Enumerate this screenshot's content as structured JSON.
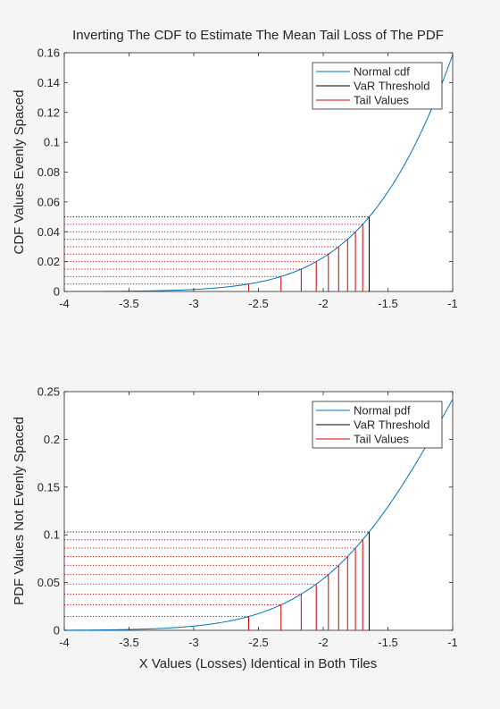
{
  "figure": {
    "title": "Inverting The CDF to Estimate The Mean Tail Loss of The PDF",
    "shared_xlabel": "X Values (Losses) Identical in Both Tiles"
  },
  "chart_data": [
    {
      "type": "line",
      "title": "Inverting The CDF to Estimate The Mean Tail Loss of The PDF",
      "xlabel": "",
      "ylabel": "CDF Values Evenly Spaced",
      "xlim": [
        -4,
        -1
      ],
      "ylim": [
        0,
        0.16
      ],
      "xticks": [
        -4,
        -3.5,
        -3,
        -2.5,
        -2,
        -1.5,
        -1
      ],
      "xtick_labels": [
        "-4",
        "-3.5",
        "-3",
        "-2.5",
        "-2",
        "-1.5",
        "-1"
      ],
      "yticks": [
        0,
        0.02,
        0.04,
        0.06,
        0.08,
        0.1,
        0.12,
        0.14,
        0.16
      ],
      "ytick_labels": [
        "0",
        "0.02",
        "0.04",
        "0.06",
        "0.08",
        "0.1",
        "0.12",
        "0.14",
        "0.16"
      ],
      "grid": false,
      "legend_position": "top-right",
      "legend": [
        "Normal cdf",
        "VaR Threshold",
        "Tail Values"
      ],
      "colors": {
        "curve": "#0072bd",
        "threshold": "#000000",
        "tail": "#d40000"
      },
      "curve": "normal_cdf",
      "var_threshold": {
        "x": -1.645,
        "y": 0.05
      },
      "tail_values": [
        {
          "x": -2.576,
          "y": 0.005
        },
        {
          "x": -2.326,
          "y": 0.01
        },
        {
          "x": -2.17,
          "y": 0.015
        },
        {
          "x": -2.054,
          "y": 0.02
        },
        {
          "x": -1.96,
          "y": 0.025
        },
        {
          "x": -1.881,
          "y": 0.03
        },
        {
          "x": -1.812,
          "y": 0.035
        },
        {
          "x": -1.751,
          "y": 0.04
        },
        {
          "x": -1.695,
          "y": 0.045
        }
      ]
    },
    {
      "type": "line",
      "title": "",
      "xlabel": "X Values (Losses) Identical in Both Tiles",
      "ylabel": "PDF Values Not Evenly Spaced",
      "xlim": [
        -4,
        -1
      ],
      "ylim": [
        0,
        0.25
      ],
      "xticks": [
        -4,
        -3.5,
        -3,
        -2.5,
        -2,
        -1.5,
        -1
      ],
      "xtick_labels": [
        "-4",
        "-3.5",
        "-3",
        "-2.5",
        "-2",
        "-1.5",
        "-1"
      ],
      "yticks": [
        0,
        0.05,
        0.1,
        0.15,
        0.2,
        0.25
      ],
      "ytick_labels": [
        "0",
        "0.05",
        "0.1",
        "0.15",
        "0.2",
        "0.25"
      ],
      "grid": false,
      "legend_position": "top-right",
      "legend": [
        "Normal pdf",
        "VaR Threshold",
        "Tail Values"
      ],
      "colors": {
        "curve": "#0072bd",
        "threshold": "#000000",
        "tail": "#d40000"
      },
      "curve": "normal_pdf",
      "var_threshold": {
        "x": -1.645,
        "y": 0.103
      },
      "tail_values": [
        {
          "x": -2.576,
          "y": 0.0145
        },
        {
          "x": -2.326,
          "y": 0.0267
        },
        {
          "x": -2.17,
          "y": 0.0379
        },
        {
          "x": -2.054,
          "y": 0.0484
        },
        {
          "x": -1.96,
          "y": 0.0584
        },
        {
          "x": -1.881,
          "y": 0.068
        },
        {
          "x": -1.812,
          "y": 0.0773
        },
        {
          "x": -1.751,
          "y": 0.0862
        },
        {
          "x": -1.695,
          "y": 0.0948
        }
      ]
    }
  ]
}
